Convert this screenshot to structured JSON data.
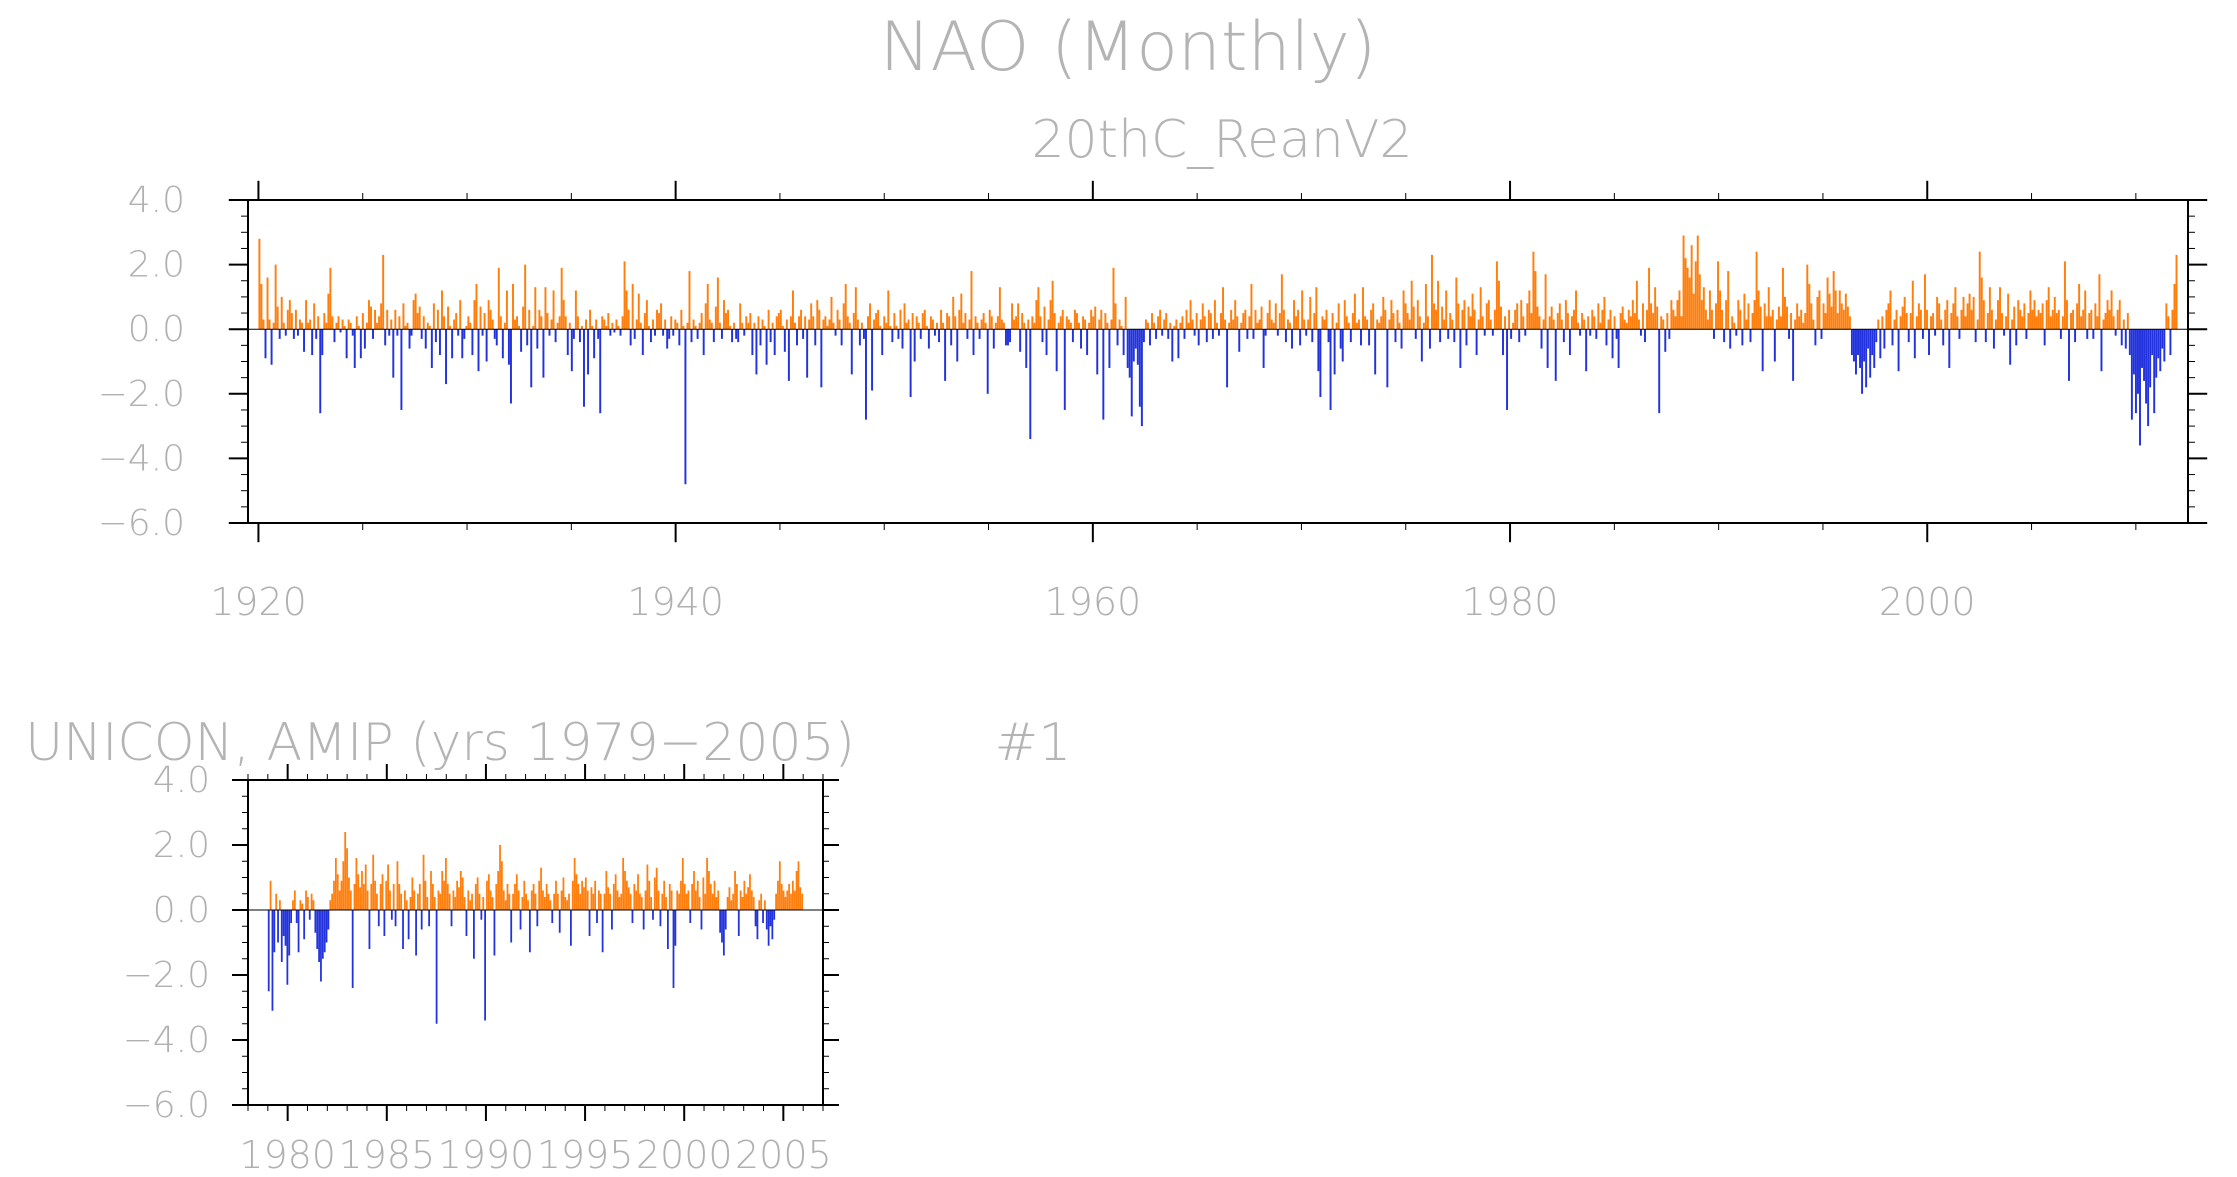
{
  "title": "NAO (Monthly)",
  "colors": {
    "positive": "#ff7f0e",
    "negative": "#2233dd",
    "text": "#b4b4b4",
    "axis": "#000000"
  },
  "chart_data": [
    {
      "type": "bar",
      "subtitle": "20thC_ReanV2",
      "label": "",
      "x_start": 1920.0,
      "x_end": 2012.0,
      "xlim": [
        1919.5,
        2012.5
      ],
      "ylim": [
        -6.0,
        4.0
      ],
      "yticks": [
        4.0,
        2.0,
        0.0,
        -2.0,
        -4.0,
        -6.0
      ],
      "ytick_labels": [
        "4.0",
        "2.0",
        "0.0",
        "−2.0",
        "−4.0",
        "−6.0"
      ],
      "xticks": [
        1920,
        1940,
        1960,
        1980,
        2000
      ],
      "xtick_labels": [
        "1920",
        "1940",
        "1960",
        "1980",
        "2000"
      ],
      "grid": false,
      "values": [
        2.8,
        1.4,
        0.3,
        -0.9,
        1.6,
        0.3,
        -1.1,
        0.2,
        2.0,
        0.7,
        -0.3,
        1.0,
        0.2,
        -0.2,
        0.6,
        0.9,
        0.5,
        -0.3,
        0.6,
        -0.2,
        0.3,
        0.2,
        -0.7,
        0.9,
        0.2,
        0.3,
        -0.8,
        0.8,
        -0.3,
        0.4,
        -2.6,
        -0.8,
        0.5,
        0.2,
        1.1,
        1.9,
        0.4,
        -0.4,
        0.2,
        0.4,
        -0.1,
        0.3,
        0.1,
        -0.9,
        0.3,
        0.2,
        -0.2,
        -1.2,
        0.4,
        0.1,
        -0.9,
        0.5,
        -0.6,
        0.2,
        0.9,
        0.7,
        -0.3,
        0.6,
        0.2,
        0.4,
        0.8,
        2.3,
        -0.5,
        0.6,
        -0.2,
        0.3,
        -1.5,
        0.6,
        -0.2,
        0.4,
        -2.5,
        0.8,
        0.1,
        0.2,
        -0.6,
        -0.2,
        0.9,
        1.1,
        0.5,
        0.7,
        -0.3,
        0.4,
        -0.6,
        0.2,
        0.1,
        -1.2,
        0.8,
        -0.4,
        0.6,
        -0.8,
        1.2,
        0.4,
        -1.7,
        0.7,
        0.1,
        -0.9,
        0.3,
        0.5,
        -0.2,
        0.9,
        -0.9,
        -0.3,
        0.1,
        0.4,
        0.2,
        -0.8,
        0.9,
        1.4,
        -1.3,
        0.7,
        -0.2,
        0.5,
        -1.0,
        0.9,
        0.6,
        0.3,
        -0.3,
        -0.5,
        1.9,
        0.4,
        -0.9,
        0.2,
        1.2,
        -1.1,
        -2.3,
        1.4,
        0.3,
        0.4,
        0.1,
        -0.7,
        0.7,
        2.0,
        -0.5,
        0.6,
        -1.8,
        0.1,
        1.3,
        -0.6,
        0.6,
        0.4,
        -1.5,
        1.3,
        0.5,
        -0.2,
        0.3,
        1.2,
        -0.4,
        0.2,
        0.4,
        1.9,
        0.9,
        0.4,
        -0.8,
        0.2,
        -1.3,
        -0.3,
        1.2,
        0.4,
        -0.4,
        0.1,
        -2.4,
        0.3,
        -1.4,
        0.6,
        0.1,
        -0.9,
        0.3,
        -0.3,
        -2.6,
        0.4,
        0.3,
        0.1,
        0.5,
        -0.2,
        0.2,
        -0.1,
        0.3,
        0.1,
        -0.2,
        0.4,
        2.1,
        1.2,
        0.6,
        -0.5,
        1.4,
        -0.3,
        0.3,
        1.1,
        0.2,
        -0.8,
        0.5,
        0.9,
        0.1,
        -0.4,
        0.3,
        -0.2,
        0.6,
        0.5,
        0.8,
        -0.2,
        0.3,
        -0.6,
        -0.3,
        0.4,
        -0.2,
        0.3,
        0.2,
        -0.5,
        0.6,
        0.1,
        -4.8,
        0.2,
        1.8,
        -0.4,
        0.3,
        0.1,
        -0.3,
        0.2,
        0.5,
        -0.8,
        0.8,
        1.4,
        0.3,
        0.2,
        -0.4,
        0.7,
        1.6,
        0.2,
        -0.3,
        0.9,
        0.5,
        0.6,
        0.1,
        -0.4,
        0.2,
        -0.3,
        -0.4,
        0.8,
        0.2,
        -0.2,
        0.4,
        0.2,
        0.5,
        -0.8,
        0.2,
        -1.4,
        0.4,
        -0.5,
        0.3,
        0.1,
        -1.1,
        0.6,
        -0.4,
        0.2,
        -0.8,
        0.4,
        0.5,
        0.6,
        0.1,
        -0.7,
        0.3,
        -1.6,
        0.4,
        1.2,
        0.2,
        -0.5,
        0.4,
        0.6,
        -0.3,
        0.4,
        -1.5,
        0.3,
        0.8,
        0.4,
        -0.5,
        0.9,
        0.6,
        -1.8,
        0.3,
        0.4,
        0.1,
        0.3,
        1.0,
        0.2,
        -0.2,
        0.6,
        0.3,
        -0.5,
        0.8,
        1.4,
        0.4,
        0.2,
        -1.4,
        0.5,
        1.3,
        0.3,
        -0.5,
        0.2,
        -0.3,
        -2.8,
        0.4,
        0.8,
        -1.9,
        0.3,
        0.5,
        0.6,
        0.1,
        -0.8,
        0.4,
        0.2,
        1.2,
        0.1,
        -0.4,
        0.5,
        0.1,
        -0.3,
        0.6,
        -0.6,
        0.8,
        0.2,
        0.3,
        -2.1,
        0.5,
        -1.0,
        0.4,
        0.2,
        -0.3,
        0.5,
        0.6,
        0.1,
        -0.6,
        0.4,
        0.3,
        -0.2,
        0.2,
        -0.4,
        0.6,
        0.2,
        -1.6,
        0.5,
        0.4,
        -0.5,
        1.0,
        0.4,
        -1.0,
        0.6,
        1.1,
        0.2,
        0.5,
        -0.3,
        0.3,
        1.8,
        -0.8,
        0.4,
        0.2,
        -0.3,
        0.3,
        0.5,
        0.2,
        -2.0,
        0.6,
        0.4,
        -0.6,
        0.2,
        0.4,
        1.3,
        0.3,
        0.2,
        -0.5,
        -0.5,
        -0.4,
        0.8,
        0.3,
        0.4,
        0.8,
        -0.7,
        0.5,
        0.2,
        -1.2,
        0.3,
        -3.4,
        0.4,
        0.2,
        0.9,
        1.3,
        0.4,
        -0.4,
        0.7,
        -0.8,
        0.3,
        0.9,
        1.5,
        0.5,
        -1.3,
        0.2,
        0.4,
        0.6,
        -2.5,
        0.4,
        0.3,
        0.2,
        -0.4,
        0.6,
        0.5,
        0.2,
        -0.6,
        0.4,
        0.3,
        -0.8,
        0.2,
        0.6,
        0.4,
        0.7,
        -1.4,
        0.3,
        0.6,
        -2.8,
        0.5,
        0.2,
        -1.2,
        0.3,
        1.9,
        0.8,
        -0.5,
        0.3,
        0.1,
        -0.8,
        1.0,
        -1.2,
        -1.5,
        -2.7,
        -1.0,
        -0.6,
        -1.1,
        -2.4,
        -3.0,
        -0.4,
        0.3,
        0.2,
        -0.5,
        0.5,
        0.2,
        -0.3,
        0.4,
        0.6,
        -0.2,
        0.3,
        0.5,
        -0.3,
        0.2,
        -1.0,
        0.1,
        0.3,
        -0.9,
        0.2,
        0.4,
        -0.3,
        0.6,
        0.2,
        0.9,
        0.3,
        -0.2,
        0.5,
        -0.5,
        0.3,
        0.8,
        0.4,
        -0.4,
        0.6,
        0.5,
        -0.3,
        0.9,
        0.2,
        -0.2,
        0.5,
        1.3,
        0.3,
        -1.8,
        0.2,
        0.6,
        0.3,
        0.9,
        0.4,
        -0.7,
        0.2,
        0.5,
        0.6,
        -0.3,
        0.4,
        1.4,
        -0.3,
        0.6,
        0.2,
        0.3,
        0.7,
        -1.2,
        -0.2,
        0.5,
        0.9,
        0.3,
        0.2,
        0.8,
        -0.2,
        0.5,
        1.7,
        0.6,
        -0.4,
        0.3,
        0.2,
        -0.6,
        0.9,
        0.4,
        0.6,
        -0.5,
        1.2,
        0.3,
        -0.2,
        0.3,
        1.0,
        -0.4,
        0.5,
        1.3,
        -1.3,
        -2.1,
        0.4,
        0.3,
        0.6,
        -0.4,
        -2.5,
        0.5,
        -1.4,
        0.2,
        0.8,
        -0.6,
        -1.0,
        0.9,
        0.4,
        0.2,
        -0.4,
        0.5,
        1.1,
        0.2,
        0.3,
        -0.5,
        1.3,
        0.4,
        0.3,
        -0.5,
        0.6,
        0.8,
        -1.4,
        0.3,
        0.2,
        0.4,
        1.0,
        0.6,
        -1.8,
        0.3,
        0.9,
        0.5,
        -0.4,
        0.6,
        0.2,
        -0.6,
        1.2,
        0.8,
        0.5,
        0.3,
        1.5,
        0.7,
        -0.3,
        0.9,
        0.4,
        -1.0,
        0.2,
        1.4,
        0.4,
        -0.6,
        2.3,
        0.8,
        0.6,
        1.5,
        -0.4,
        0.7,
        0.3,
        1.2,
        -0.3,
        0.5,
        0.3,
        -0.4,
        1.6,
        0.8,
        -1.2,
        0.6,
        0.9,
        -0.5,
        0.7,
        0.4,
        1.1,
        0.6,
        -0.8,
        0.3,
        1.3,
        0.4,
        -0.2,
        0.8,
        0.9,
        0.3,
        -0.2,
        0.6,
        2.1,
        1.5,
        0.7,
        -0.8,
        0.4,
        -2.5,
        0.6,
        -0.3,
        0.2,
        0.6,
        0.8,
        -0.4,
        0.9,
        0.4,
        -0.2,
        0.8,
        1.2,
        0.5,
        2.4,
        1.8,
        0.7,
        0.4,
        -0.6,
        0.3,
        1.7,
        -1.2,
        0.4,
        0.7,
        0.3,
        -1.6,
        0.5,
        0.8,
        0.3,
        -0.4,
        0.9,
        0.5,
        -0.8,
        0.4,
        0.6,
        1.2,
        0.2,
        -0.2,
        0.5,
        0.3,
        -1.3,
        0.4,
        -0.2,
        0.6,
        0.4,
        -0.3,
        0.8,
        0.2,
        0.6,
        1.0,
        -0.5,
        0.3,
        0.6,
        -0.9,
        0.4,
        -0.3,
        -1.2,
        0.5,
        0.7,
        0.3,
        0.2,
        0.6,
        0.4,
        0.9,
        0.5,
        1.5,
        0.3,
        -0.2,
        0.8,
        -0.4,
        0.6,
        1.9,
        0.8,
        0.5,
        1.3,
        0.7,
        -2.6,
        0.4,
        0.3,
        -0.7,
        0.5,
        -0.3,
        0.9,
        0.6,
        0.4,
        0.9,
        1.2,
        0.4,
        2.9,
        2.2,
        1.9,
        1.6,
        2.6,
        1.1,
        2.1,
        2.9,
        1.7,
        0.9,
        1.3,
        0.6,
        0.3,
        1.2,
        0.6,
        -0.3,
        0.8,
        2.1,
        1.2,
        0.6,
        -0.4,
        0.9,
        1.8,
        -0.6,
        0.4,
        0.2,
        -0.2,
        0.9,
        0.6,
        -0.5,
        1.1,
        0.3,
        0.8,
        -0.4,
        0.5,
        0.9,
        2.4,
        1.2,
        0.7,
        -1.3,
        0.8,
        0.4,
        1.3,
        0.4,
        0.6,
        -1.0,
        0.3,
        0.7,
        0.4,
        1.9,
        1.0,
        0.7,
        -0.3,
        0.5,
        -1.6,
        0.3,
        0.8,
        0.4,
        0.6,
        0.2,
        0.5,
        2.0,
        1.4,
        0.8,
        0.3,
        -0.5,
        1.0,
        1.2,
        -0.3,
        0.8,
        0.5,
        1.6,
        1.1,
        0.7,
        1.8,
        1.2,
        0.5,
        1.2,
        0.8,
        0.6,
        1.1,
        0.7,
        0.4,
        -0.8,
        -1.0,
        -1.4,
        -0.8,
        -1.2,
        -2.0,
        -1.0,
        -1.8,
        -0.6,
        -1.5,
        -0.8,
        -1.2,
        -0.4,
        0.3,
        -0.9,
        0.4,
        -0.6,
        0.6,
        0.8,
        1.2,
        -0.5,
        0.3,
        0.6,
        -1.3,
        0.4,
        0.7,
        1.0,
        0.5,
        -0.4,
        0.5,
        1.5,
        -0.9,
        0.4,
        0.8,
        0.6,
        -0.3,
        1.7,
        0.6,
        -0.8,
        0.4,
        0.5,
        -0.2,
        1.0,
        0.8,
        0.3,
        -0.5,
        0.6,
        0.9,
        -1.2,
        0.5,
        0.8,
        1.3,
        0.4,
        -0.3,
        0.6,
        1.0,
        0.4,
        0.8,
        1.1,
        0.6,
        1.0,
        -0.4,
        0.3,
        2.4,
        1.6,
        0.9,
        -0.4,
        0.5,
        1.3,
        0.6,
        -0.6,
        0.3,
        0.9,
        1.3,
        0.5,
        -0.2,
        0.4,
        1.1,
        -1.1,
        0.3,
        0.7,
        -0.5,
        0.9,
        0.6,
        0.4,
        0.8,
        -0.3,
        0.5,
        1.2,
        0.6,
        0.9,
        0.4,
        0.6,
        0.5,
        0.8,
        -0.5,
        0.9,
        1.3,
        0.4,
        0.6,
        1.0,
        0.5,
        0.6,
        -0.3,
        0.4,
        2.1,
        0.9,
        -1.6,
        0.5,
        0.6,
        -0.4,
        0.8,
        1.4,
        0.4,
        0.6,
        1.2,
        -0.3,
        0.5,
        0.6,
        -0.3,
        0.8,
        0.4,
        1.7,
        -1.3,
        0.3,
        0.5,
        0.9,
        0.6,
        1.2,
        0.4,
        -0.2,
        0.6,
        0.9,
        -0.5,
        0.3,
        -0.6,
        0.5,
        -0.8,
        -2.8,
        -1.4,
        -2.6,
        -2.0,
        -3.6,
        -1.2,
        -1.6,
        -2.3,
        -3.0,
        -1.8,
        -0.8,
        -2.6,
        -1.5,
        -0.9,
        -1.3,
        -0.6,
        -1.0,
        0.8,
        0.4,
        -0.8,
        0.6,
        1.4,
        2.3
      ]
    },
    {
      "type": "bar",
      "subtitle": "UNICON, AMIP (yrs 1979−2005)",
      "label": "#1",
      "x_start": 1979.0,
      "x_end": 2006.0,
      "xlim": [
        1978.0,
        2007.0
      ],
      "ylim": [
        -6.0,
        4.0
      ],
      "yticks": [
        4.0,
        2.0,
        0.0,
        -2.0,
        -4.0,
        -6.0
      ],
      "ytick_labels": [
        "4.0",
        "2.0",
        "0.0",
        "−2.0",
        "−4.0",
        "−6.0"
      ],
      "xticks": [
        1980,
        1985,
        1990,
        1995,
        2000,
        2005
      ],
      "xtick_labels": [
        "1980",
        "1985",
        "1990",
        "1995",
        "2000",
        "2005"
      ],
      "grid": false,
      "values": [
        -2.5,
        0.9,
        -3.1,
        -1.3,
        0.5,
        -1.0,
        0.3,
        -1.6,
        -0.8,
        -1.1,
        -2.3,
        -1.4,
        -0.4,
        0.3,
        0.6,
        -0.4,
        -1.3,
        0.3,
        0.2,
        -0.9,
        0.6,
        0.4,
        -0.3,
        0.5,
        0.3,
        -0.7,
        -1.2,
        -1.6,
        -2.2,
        -1.5,
        -1.3,
        -1.0,
        -0.6,
        0.3,
        0.5,
        0.9,
        1.6,
        1.1,
        0.6,
        0.9,
        1.5,
        2.4,
        1.9,
        1.0,
        0.6,
        -2.4,
        0.8,
        1.6,
        1.1,
        0.7,
        1.2,
        0.8,
        1.4,
        0.6,
        -1.2,
        0.8,
        1.7,
        0.9,
        0.5,
        -0.5,
        0.8,
        1.1,
        -0.8,
        0.9,
        1.4,
        0.6,
        -0.3,
        0.8,
        -0.5,
        1.5,
        0.8,
        0.5,
        -1.2,
        0.6,
        0.3,
        -0.9,
        0.4,
        1.0,
        0.6,
        -1.4,
        0.5,
        0.8,
        -0.6,
        1.7,
        0.9,
        0.4,
        -0.5,
        1.2,
        0.8,
        0.4,
        -3.5,
        0.6,
        0.5,
        1.2,
        0.9,
        1.6,
        0.8,
        0.5,
        -0.5,
        0.6,
        0.4,
        0.9,
        0.7,
        1.2,
        1.0,
        0.4,
        -0.8,
        0.6,
        0.3,
        0.5,
        -1.5,
        0.8,
        1.0,
        0.5,
        -0.3,
        0.4,
        -3.4,
        0.9,
        1.1,
        0.6,
        0.4,
        -1.4,
        0.8,
        1.2,
        2.0,
        1.5,
        0.6,
        0.3,
        0.8,
        0.5,
        -1.0,
        0.5,
        0.8,
        1.1,
        0.6,
        -0.6,
        0.4,
        0.9,
        0.5,
        0.3,
        -1.3,
        0.6,
        0.8,
        0.5,
        -0.5,
        0.9,
        1.3,
        0.6,
        0.4,
        0.8,
        0.5,
        0.3,
        -0.4,
        0.5,
        0.9,
        0.5,
        -0.7,
        0.6,
        1.0,
        0.4,
        0.3,
        0.5,
        -1.1,
        0.9,
        1.6,
        1.1,
        0.8,
        0.5,
        0.9,
        0.7,
        1.0,
        0.6,
        -0.8,
        0.7,
        0.5,
        0.9,
        -0.4,
        0.6,
        0.5,
        -1.3,
        0.5,
        1.2,
        0.7,
        0.5,
        -0.6,
        0.8,
        1.1,
        0.6,
        0.4,
        0.5,
        1.6,
        1.2,
        0.9,
        0.7,
        0.5,
        -0.4,
        0.8,
        0.6,
        1.1,
        0.5,
        0.4,
        -0.6,
        0.6,
        1.4,
        0.9,
        0.4,
        -0.3,
        1.0,
        1.3,
        0.6,
        -0.5,
        0.5,
        0.9,
        0.4,
        -1.2,
        0.8,
        0.6,
        -2.4,
        -1.1,
        0.6,
        0.5,
        0.9,
        1.6,
        0.8,
        0.5,
        0.6,
        -0.4,
        0.8,
        1.2,
        0.6,
        0.9,
        0.4,
        -0.6,
        1.0,
        0.5,
        1.6,
        1.2,
        0.8,
        0.5,
        0.9,
        0.4,
        0.6,
        -0.7,
        -1.0,
        -1.4,
        -0.6,
        0.4,
        0.7,
        0.3,
        0.5,
        1.2,
        0.8,
        -0.8,
        0.6,
        0.4,
        0.9,
        0.5,
        0.7,
        1.1,
        0.6,
        0.4,
        -0.5,
        -0.9,
        0.3,
        0.5,
        -0.4,
        0.3,
        -0.6,
        -1.1,
        -0.5,
        -0.9,
        -0.3,
        0.5,
        0.9,
        1.5,
        0.8,
        0.6,
        0.4,
        0.6,
        0.8,
        0.5,
        0.9,
        0.6,
        1.2,
        1.5,
        0.7,
        0.5
      ]
    }
  ]
}
